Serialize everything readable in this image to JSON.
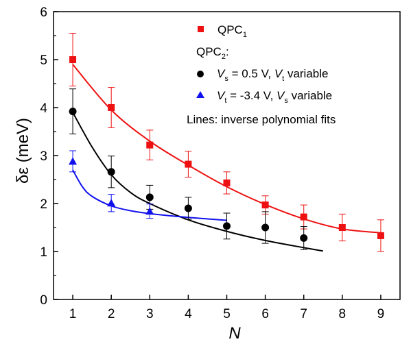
{
  "chart_data": {
    "type": "scatter",
    "xlabel": "N",
    "ylabel": "δε (meV)",
    "xlim": [
      0.5,
      9.5
    ],
    "ylim": [
      0,
      6
    ],
    "x_ticks": [
      1,
      2,
      3,
      4,
      5,
      6,
      7,
      8,
      9
    ],
    "y_ticks": [
      0,
      1,
      2,
      3,
      4,
      5,
      6
    ],
    "series": [
      {
        "name": "QPC1",
        "marker": "square",
        "color": "#ee1111",
        "x": [
          1,
          2,
          3,
          4,
          5,
          6,
          7,
          8,
          9
        ],
        "y": [
          5.0,
          4.0,
          3.22,
          2.82,
          2.43,
          1.97,
          1.72,
          1.5,
          1.33
        ],
        "err": [
          0.55,
          0.42,
          0.31,
          0.27,
          0.23,
          0.19,
          0.25,
          0.28,
          0.33
        ]
      },
      {
        "name": "QPC2: Vs = 0.5 V, Vt variable",
        "marker": "circle",
        "color": "#000000",
        "x": [
          1,
          2,
          3,
          4,
          5,
          6,
          7
        ],
        "y": [
          3.92,
          2.66,
          2.13,
          1.9,
          1.53,
          1.5,
          1.28
        ],
        "err": [
          0.47,
          0.33,
          0.25,
          0.23,
          0.27,
          0.33,
          0.24
        ]
      },
      {
        "name": "QPC2: Vt = -3.4 V, Vs variable",
        "marker": "triangle",
        "color": "#1111ee",
        "x": [
          1,
          2,
          3
        ],
        "y": [
          2.88,
          2.01,
          1.84
        ],
        "err": [
          0.22,
          0.18,
          0.15
        ]
      }
    ],
    "fits": [
      {
        "color": "#ee1111",
        "x": [
          1.0,
          2.0,
          3.0,
          4.0,
          5.0,
          6.0,
          7.0,
          8.0,
          9.0
        ],
        "y": [
          4.9,
          3.95,
          3.3,
          2.8,
          2.35,
          1.98,
          1.68,
          1.47,
          1.39
        ]
      },
      {
        "color": "#000000",
        "x": [
          1.0,
          1.5,
          2.0,
          2.5,
          3.0,
          4.0,
          5.0,
          6.0,
          7.0,
          7.5
        ],
        "y": [
          3.9,
          3.18,
          2.6,
          2.23,
          2.0,
          1.66,
          1.42,
          1.23,
          1.08,
          1.01
        ]
      },
      {
        "color": "#1111ee",
        "x": [
          1.0,
          1.25,
          1.5,
          2.0,
          2.5,
          3.0,
          4.0,
          5.0
        ],
        "y": [
          2.7,
          2.35,
          2.15,
          1.95,
          1.85,
          1.79,
          1.71,
          1.65
        ]
      }
    ],
    "legend": {
      "placement": "top-right",
      "qpc1_label": "QPC",
      "qpc1_sub": "1",
      "qpc2_label": "QPC",
      "qpc2_sub": "2",
      "qpc2_colon": ":",
      "black_v1": "V",
      "black_v1_sub": "s",
      "black_mid": " = 0.5 V, ",
      "black_v2": "V",
      "black_v2_sub": "t",
      "black_end": " variable",
      "blue_v1": "V",
      "blue_v1_sub": "t",
      "blue_mid": " = -3.4 V, ",
      "blue_v2": "V",
      "blue_v2_sub": "s",
      "blue_end": " variable",
      "note": "Lines: inverse polynomial fits"
    }
  }
}
